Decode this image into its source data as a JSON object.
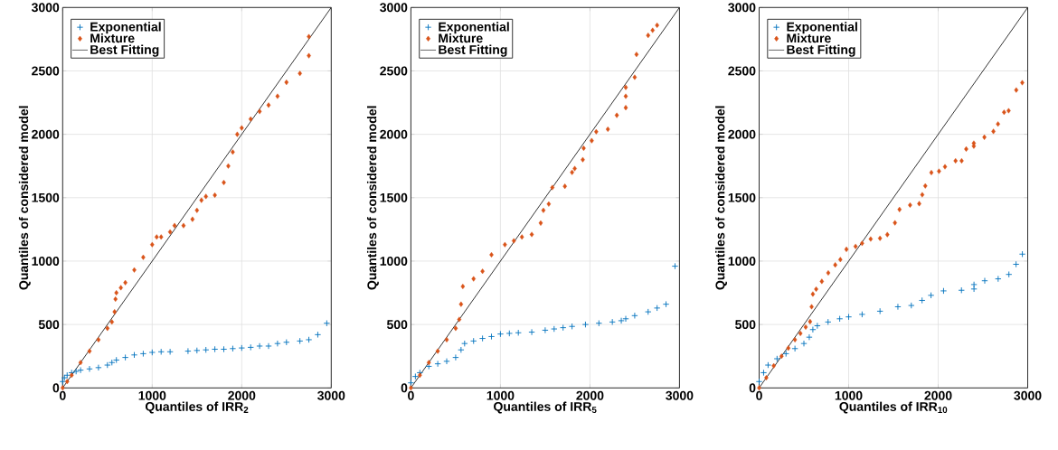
{
  "chart_data": [
    {
      "type": "scatter",
      "xlabel": "Quantiles of IRR$_{2}$",
      "ylabel": "Quantiles of considered model",
      "xlim": [
        0,
        3000
      ],
      "ylim": [
        0,
        3000
      ],
      "xticks": [
        0,
        1000,
        2000,
        3000
      ],
      "yticks": [
        0,
        500,
        1000,
        1500,
        2000,
        2500,
        3000
      ],
      "grid": true,
      "legend": "top left",
      "series": [
        {
          "name": "Exponential",
          "marker": "cross",
          "color": "#0072bd",
          "x": [
            0,
            20,
            50,
            100,
            150,
            200,
            300,
            400,
            500,
            550,
            600,
            700,
            800,
            900,
            1000,
            1100,
            1200,
            1400,
            1500,
            1600,
            1700,
            1800,
            1900,
            2000,
            2100,
            2200,
            2300,
            2400,
            2500,
            2650,
            2750,
            2850,
            2950
          ],
          "values": [
            50,
            80,
            100,
            120,
            130,
            140,
            150,
            160,
            180,
            200,
            220,
            240,
            260,
            270,
            280,
            285,
            285,
            290,
            295,
            300,
            305,
            305,
            310,
            315,
            320,
            330,
            330,
            350,
            360,
            370,
            380,
            420,
            510
          ]
        },
        {
          "name": "Mixture",
          "marker": "diamond",
          "color": "#d95319",
          "x": [
            0,
            50,
            100,
            200,
            300,
            400,
            500,
            550,
            580,
            590,
            600,
            650,
            700,
            800,
            900,
            1000,
            1050,
            1100,
            1200,
            1250,
            1350,
            1450,
            1500,
            1550,
            1600,
            1700,
            1800,
            1850,
            1900,
            1950,
            2000,
            2100,
            2200,
            2300,
            2400,
            2500,
            2650,
            2750,
            2750
          ],
          "values": [
            0,
            50,
            100,
            200,
            290,
            380,
            470,
            520,
            600,
            700,
            750,
            790,
            830,
            930,
            1030,
            1130,
            1190,
            1190,
            1230,
            1280,
            1280,
            1330,
            1400,
            1480,
            1510,
            1520,
            1620,
            1750,
            1860,
            2000,
            2050,
            2120,
            2180,
            2230,
            2300,
            2410,
            2480,
            2620,
            2770
          ]
        },
        {
          "name": "Best Fitting",
          "type": "line",
          "marker": "none",
          "color": "#000000",
          "x": [
            0,
            3000
          ],
          "values": [
            0,
            3000
          ]
        }
      ]
    },
    {
      "type": "scatter",
      "xlabel": "Quantiles of IRR$_{5}$",
      "ylabel": "Quantiles of considered model",
      "xlim": [
        0,
        3000
      ],
      "ylim": [
        0,
        3000
      ],
      "xticks": [
        0,
        1000,
        2000,
        3000
      ],
      "yticks": [
        0,
        500,
        1000,
        1500,
        2000,
        2500,
        3000
      ],
      "grid": true,
      "legend": "top left",
      "series": [
        {
          "name": "Exponential",
          "marker": "cross",
          "color": "#0072bd",
          "x": [
            0,
            50,
            100,
            200,
            300,
            400,
            500,
            560,
            600,
            700,
            800,
            900,
            1000,
            1100,
            1200,
            1350,
            1500,
            1600,
            1700,
            1800,
            1950,
            2100,
            2250,
            2350,
            2400,
            2500,
            2650,
            2750,
            2850,
            2950
          ],
          "values": [
            40,
            90,
            120,
            170,
            190,
            210,
            240,
            300,
            350,
            370,
            390,
            405,
            425,
            430,
            435,
            440,
            455,
            465,
            475,
            485,
            500,
            510,
            520,
            530,
            545,
            570,
            600,
            630,
            660,
            960
          ]
        },
        {
          "name": "Mixture",
          "marker": "diamond",
          "color": "#d95319",
          "x": [
            0,
            100,
            200,
            300,
            400,
            500,
            540,
            560,
            580,
            700,
            800,
            900,
            1050,
            1150,
            1240,
            1350,
            1450,
            1480,
            1540,
            1580,
            1720,
            1800,
            1830,
            1920,
            1930,
            2020,
            2070,
            2200,
            2300,
            2400,
            2400,
            2400,
            2500,
            2520,
            2650,
            2700,
            2750
          ],
          "values": [
            0,
            100,
            200,
            290,
            380,
            470,
            540,
            660,
            800,
            860,
            920,
            1050,
            1130,
            1160,
            1190,
            1210,
            1300,
            1400,
            1450,
            1580,
            1590,
            1700,
            1730,
            1800,
            1890,
            1950,
            2020,
            2040,
            2150,
            2210,
            2300,
            2370,
            2450,
            2630,
            2780,
            2820,
            2860
          ]
        },
        {
          "name": "Best Fitting",
          "type": "line",
          "marker": "none",
          "color": "#000000",
          "x": [
            0,
            3000
          ],
          "values": [
            0,
            3000
          ]
        }
      ]
    },
    {
      "type": "scatter",
      "xlabel": "Quantiles of IRR$_{10}$",
      "ylabel": "Quantiles of considered model",
      "xlim": [
        0,
        3000
      ],
      "ylim": [
        0,
        3000
      ],
      "xticks": [
        0,
        1000,
        2000,
        3000
      ],
      "yticks": [
        0,
        500,
        1000,
        1500,
        2000,
        2500,
        3000
      ],
      "grid": true,
      "legend": "top left",
      "series": [
        {
          "name": "Exponential",
          "marker": "cross",
          "color": "#0072bd",
          "x": [
            0,
            50,
            100,
            200,
            300,
            400,
            500,
            560,
            600,
            650,
            770,
            900,
            1000,
            1150,
            1350,
            1550,
            1700,
            1820,
            1920,
            2060,
            2260,
            2400,
            2400,
            2520,
            2670,
            2790,
            2870,
            2940
          ],
          "values": [
            50,
            120,
            180,
            230,
            270,
            310,
            350,
            400,
            460,
            490,
            520,
            545,
            560,
            580,
            605,
            640,
            650,
            690,
            730,
            765,
            770,
            780,
            815,
            845,
            860,
            895,
            975,
            1055
          ]
        },
        {
          "name": "Mixture",
          "marker": "diamond",
          "color": "#d95319",
          "x": [
            0,
            80,
            163,
            250,
            326,
            400,
            461,
            520,
            569,
            586,
            600,
            637,
            700,
            772,
            850,
            907,
            975,
            1077,
            1150,
            1246,
            1350,
            1432,
            1517,
            1568,
            1686,
            1788,
            1822,
            1856,
            1924,
            2009,
            2076,
            2194,
            2262,
            2313,
            2398,
            2398,
            2516,
            2617,
            2668,
            2736,
            2787,
            2872,
            2939
          ],
          "values": [
            0,
            80,
            174,
            250,
            314,
            380,
            430,
            480,
            523,
            640,
            740,
            779,
            840,
            907,
            970,
            1012,
            1093,
            1116,
            1140,
            1174,
            1180,
            1209,
            1302,
            1407,
            1442,
            1453,
            1523,
            1593,
            1698,
            1709,
            1744,
            1791,
            1791,
            1884,
            1907,
            1930,
            1977,
            2023,
            2081,
            2174,
            2186,
            2349,
            2407
          ]
        },
        {
          "name": "Best Fitting",
          "type": "line",
          "marker": "none",
          "color": "#000000",
          "x": [
            0,
            3000
          ],
          "values": [
            0,
            3000
          ]
        }
      ]
    }
  ]
}
